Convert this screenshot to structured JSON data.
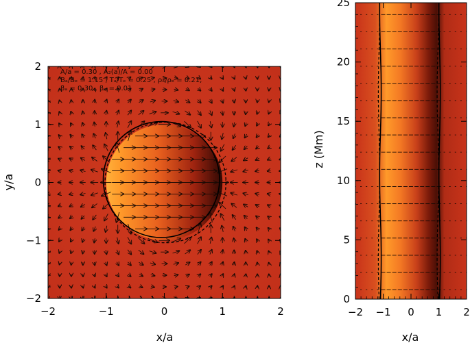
{
  "chart_data": [
    {
      "type": "vector-field",
      "xlabel": "x/a",
      "ylabel": "y/a",
      "xlim": [
        -2,
        2
      ],
      "ylim": [
        -2,
        2
      ],
      "xticks": [
        "−2",
        "−1",
        "0",
        "1",
        "2"
      ],
      "yticks": [
        "−2",
        "−1",
        "0",
        "1",
        "2"
      ],
      "annotations": [
        "A/a = 0.30 , A₂(a)/A = 0.00",
        "Bₐ/Bₑ = 1.15 , Tₐ/Tₑ = 0.25 , ρₐ/ρₑ = 0.21,",
        "βₐ = 0.30 , βₑ = 0.01"
      ],
      "boundary": {
        "solid_circle_radius": 1.0,
        "dashed_circle_shift_x": 0.3
      },
      "colors": {
        "background": "#c8331a",
        "tube_bright": "#ff9a2a",
        "tube_dark": "#3a0a04"
      }
    },
    {
      "type": "vertical-section",
      "xlabel": "x/a",
      "ylabel": "z (Mm)",
      "xlim": [
        -2,
        2
      ],
      "ylim": [
        0,
        25
      ],
      "xticks": [
        "−2",
        "−1",
        "0",
        "1",
        "2"
      ],
      "yticks": [
        "0",
        "5",
        "10",
        "15",
        "20",
        "25"
      ],
      "boundary_lines_x": [
        -1,
        1
      ],
      "colors": {
        "background": "#c8331a",
        "tube_bright": "#ff9a2a",
        "tube_dark": "#4a0f06"
      }
    }
  ]
}
